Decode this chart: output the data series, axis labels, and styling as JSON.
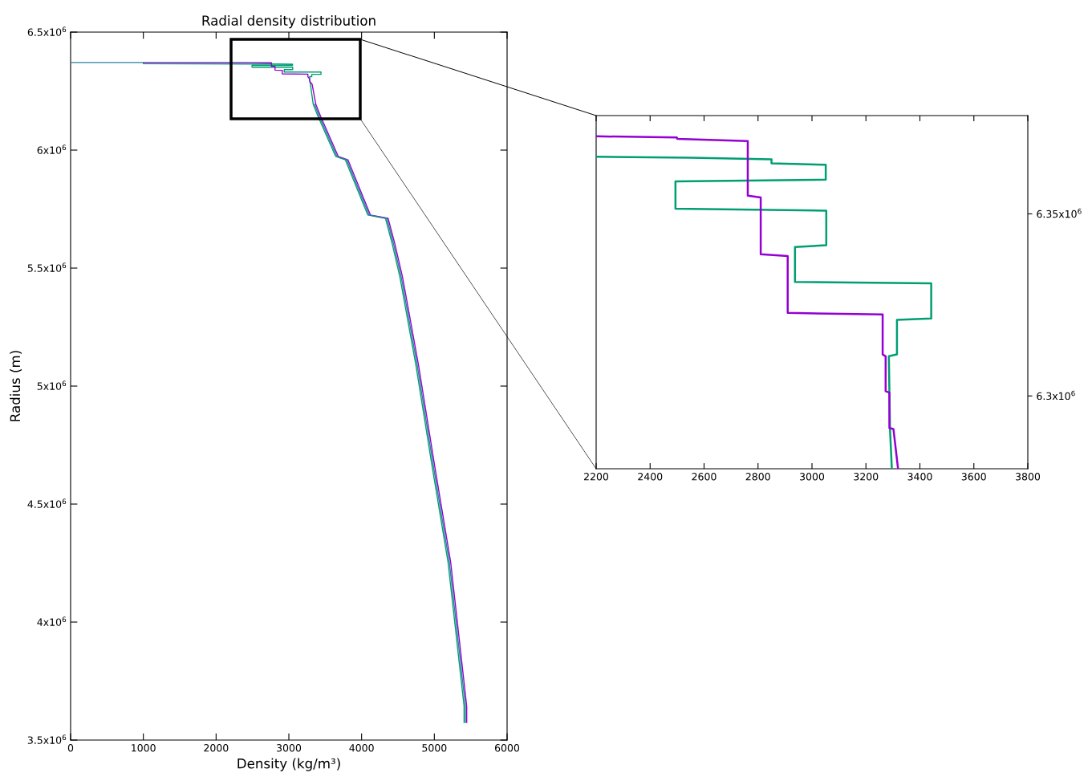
{
  "chart_data": [
    {
      "type": "line",
      "title": "Radial density distribution",
      "xlabel": "Density (kg/m³)",
      "ylabel": "Radius (m)",
      "xlim": [
        0,
        6000
      ],
      "xticks": [
        0,
        1000,
        2000,
        3000,
        4000,
        5000,
        6000
      ],
      "ylim": [
        3500000,
        6500000
      ],
      "yticks": [
        {
          "value": 3500000,
          "label": "3.5x10$^{6}$"
        },
        {
          "value": 4000000,
          "label": "4x10$^{6}$"
        },
        {
          "value": 4500000,
          "label": "4.5x10$^{6}$"
        },
        {
          "value": 5000000,
          "label": "5x10$^{6}$"
        },
        {
          "value": 5500000,
          "label": "5.5x10$^{6}$"
        },
        {
          "value": 6000000,
          "label": "6x10$^{6}$"
        },
        {
          "value": 6500000,
          "label": "6.5x10$^{6}$"
        }
      ],
      "grid": false,
      "legend": false,
      "line_style": "solid",
      "marker": "none",
      "series": [
        {
          "color": "#2a7f9f",
          "x": [
            0,
            1000,
            null,
            3353,
            3419,
            3662,
            3794,
            4103,
            4346,
            4434,
            4544,
            4765,
            4986,
            5206,
            5427,
            5427
          ],
          "values": [
            6371000,
            6371000,
            null,
            6194000,
            6143000,
            5973000,
            5959000,
            5725000,
            5711000,
            5609000,
            5463000,
            5088000,
            4663000,
            4255000,
            3643000,
            3575000
          ]
        },
        {
          "color": "#9400d3",
          "x": [
            1000,
            2499,
            2762,
            2762,
            2810,
            2810,
            2910,
            2910,
            3262,
            3262,
            3287,
            3287,
            3319,
            3371,
            3437,
            3680,
            3812,
            4121,
            4364,
            4452,
            4562,
            4783,
            5004,
            5224,
            5445,
            5445
          ],
          "values": [
            6371000,
            6371000,
            6370000,
            6355000,
            6355000,
            6339000,
            6338000,
            6323000,
            6322000,
            6311000,
            6301000,
            6291000,
            6280000,
            6194000,
            6143000,
            5973000,
            5959000,
            5725000,
            5711000,
            5609000,
            5463000,
            5088000,
            4663000,
            4255000,
            3643000,
            3575000
          ]
        },
        {
          "color": "#009e73",
          "x": [
            1000,
            2552,
            2850,
            3051,
            3051,
            2494,
            2494,
            3053,
            3053,
            2937,
            2937,
            3442,
            3442,
            3315,
            3315,
            3285,
            3289,
            3296,
            3335,
            3401,
            3644,
            3776,
            4085,
            4328,
            4416,
            4526,
            4747,
            4968,
            5188,
            5409,
            5409
          ],
          "values": [
            6366000,
            6365000,
            6365000,
            6364000,
            6359000,
            6359000,
            6351000,
            6351000,
            6341000,
            6341000,
            6331000,
            6331000,
            6321000,
            6321000,
            6311000,
            6311000,
            6291000,
            6280000,
            6194000,
            6143000,
            5973000,
            5959000,
            5725000,
            5711000,
            5609000,
            5463000,
            5088000,
            4663000,
            4255000,
            3643000,
            3575000
          ]
        }
      ]
    },
    {
      "type": "line",
      "xlim": [
        2200,
        3800
      ],
      "xticks": [
        2200,
        2400,
        2600,
        2800,
        3000,
        3200,
        3400,
        3600,
        3800
      ],
      "ylim": [
        6280000,
        6377000
      ],
      "yticks": [
        {
          "value": 6300000,
          "label": "6.3x10$^{6}$"
        },
        {
          "value": 6350000,
          "label": "6.35x10$^{6}$"
        }
      ],
      "grid": false,
      "legend": false,
      "line_style": "solid",
      "marker": "none",
      "series": [
        {
          "color": "#9400d3",
          "x": [
            2202,
            2499,
            2501,
            2762,
            2762,
            2810,
            2810,
            2910,
            2910,
            3262,
            3262,
            3273,
            3273,
            3287,
            3287,
            3302,
            3319
          ],
          "values": [
            6371300,
            6371000,
            6370600,
            6370000,
            6355000,
            6354500,
            6338900,
            6338400,
            6322800,
            6322400,
            6311400,
            6310900,
            6301300,
            6300900,
            6291200,
            6290900,
            6280000
          ]
        },
        {
          "color": "#009e73",
          "x": [
            2202,
            2552,
            2850,
            2850,
            3051,
            3051,
            2494,
            2494,
            3053,
            3053,
            2937,
            2937,
            3442,
            3442,
            3315,
            3315,
            3285,
            3289,
            3296
          ],
          "values": [
            6365700,
            6365400,
            6365000,
            6363900,
            6363500,
            6359400,
            6358900,
            6351400,
            6350900,
            6341400,
            6340900,
            6331300,
            6330900,
            6321300,
            6320900,
            6311400,
            6310900,
            6291200,
            6280000
          ]
        }
      ]
    }
  ]
}
